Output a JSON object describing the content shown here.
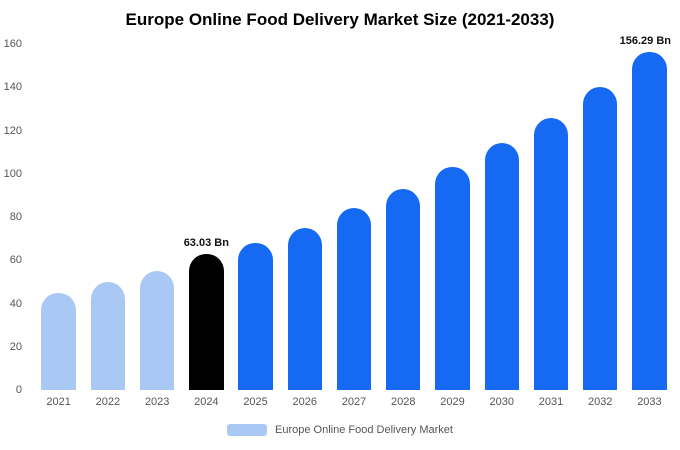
{
  "chart_data": {
    "type": "bar",
    "title": "Europe Online Food Delivery Market Size (2021-2033)",
    "unit": "Bn",
    "categories": [
      "2021",
      "2022",
      "2023",
      "2024",
      "2025",
      "2026",
      "2027",
      "2028",
      "2029",
      "2030",
      "2031",
      "2032",
      "2033"
    ],
    "values": [
      45,
      50,
      55,
      63.03,
      68,
      75,
      84,
      93,
      103,
      114,
      126,
      140,
      156.29
    ],
    "bar_colors": [
      "#a9c9f4",
      "#a9c9f4",
      "#a9c9f4",
      "#000000",
      "#1569f3",
      "#1569f3",
      "#1569f3",
      "#1569f3",
      "#1569f3",
      "#1569f3",
      "#1569f3",
      "#1569f3",
      "#1569f3"
    ],
    "ylim": [
      0,
      160
    ],
    "yticks": [
      0,
      20,
      40,
      60,
      80,
      100,
      120,
      140,
      160
    ],
    "grid": false,
    "annotations": [
      {
        "index": 3,
        "label": "63.03 Bn"
      },
      {
        "index": 12,
        "label": "156.29 Bn"
      }
    ],
    "legend": {
      "label": "Europe Online Food Delivery Market",
      "swatch_color": "#a9c9f4",
      "position": "bottom"
    }
  }
}
